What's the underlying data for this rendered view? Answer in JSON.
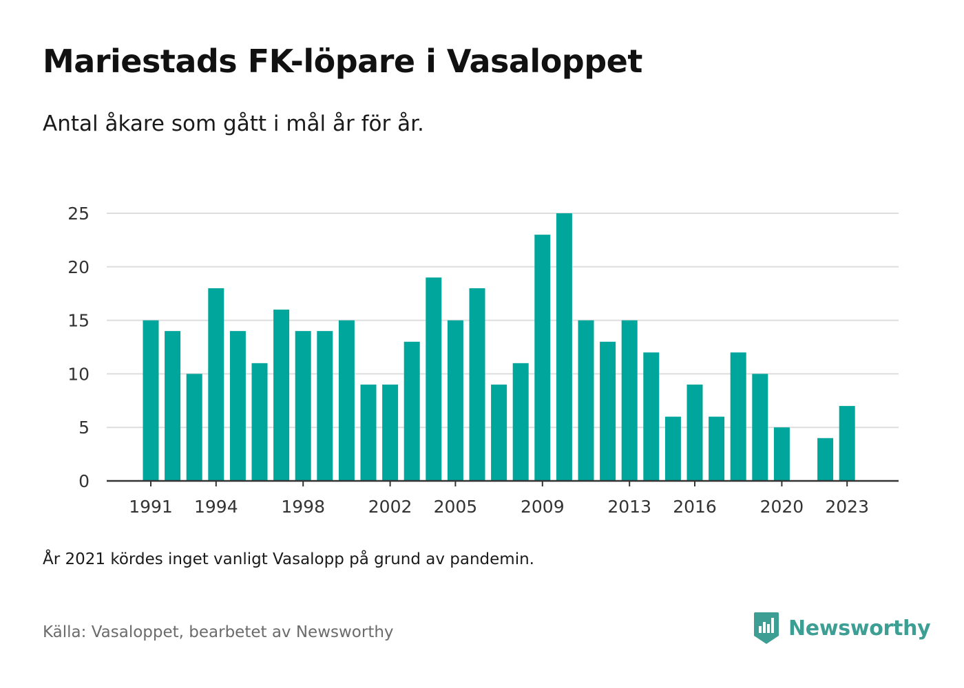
{
  "title": "Mariestads FK-löpare i Vasaloppet",
  "subtitle": "Antal åkare som gått i mål år för år.",
  "note": "År 2021 kördes inget vanligt Vasalopp på grund av pandemin.",
  "source": "Källa: Vasaloppet, bearbetet av Newsworthy",
  "brand": {
    "name": "Newsworthy",
    "icon": "newsworthy-logo-icon",
    "color": "#3d9e93"
  },
  "chart_data": {
    "type": "bar",
    "categories": [
      "1991",
      "1992",
      "1993",
      "1994",
      "1995",
      "1996",
      "1997",
      "1998",
      "1999",
      "2000",
      "2001",
      "2002",
      "2003",
      "2004",
      "2005",
      "2006",
      "2007",
      "2008",
      "2009",
      "2010",
      "2011",
      "2012",
      "2013",
      "2014",
      "2015",
      "2016",
      "2017",
      "2018",
      "2019",
      "2020",
      "2021",
      "2022",
      "2023"
    ],
    "values": [
      15,
      14,
      10,
      18,
      14,
      11,
      16,
      14,
      14,
      15,
      9,
      9,
      13,
      19,
      15,
      18,
      9,
      11,
      23,
      25,
      15,
      13,
      15,
      12,
      6,
      9,
      6,
      12,
      10,
      5,
      null,
      4,
      7
    ],
    "x_tick_labels": [
      "1991",
      "1994",
      "1998",
      "2002",
      "2005",
      "2009",
      "2013",
      "2016",
      "2020",
      "2023"
    ],
    "y_ticks": [
      0,
      5,
      10,
      15,
      20,
      25
    ],
    "ylim": [
      0,
      25
    ],
    "xlabel": "",
    "ylabel": "",
    "grid": true,
    "bar_color": "#00a69b",
    "grid_color": "#dddddd",
    "axis_color": "#333333"
  }
}
